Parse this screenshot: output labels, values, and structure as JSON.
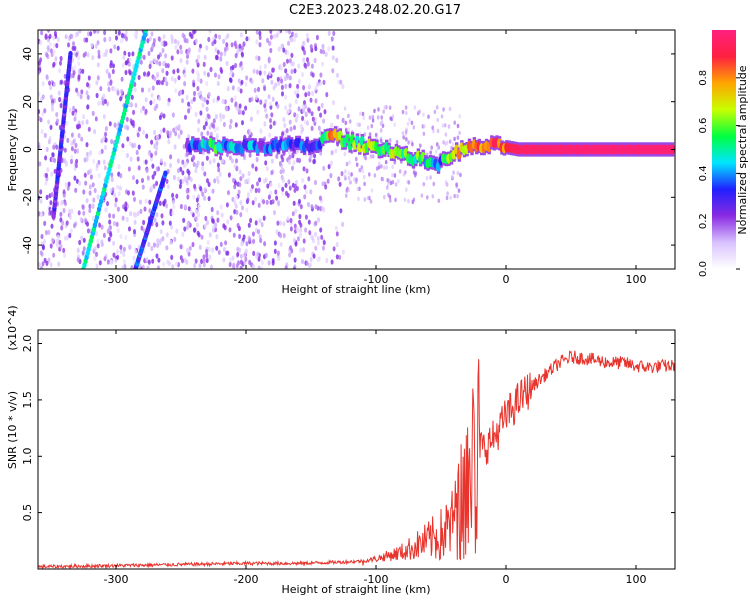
{
  "title": "C2E3.2023.248.02.20.G17",
  "chart_data": [
    {
      "type": "heatmap",
      "name": "spectrogram",
      "xlabel": "Height of straight line (km)",
      "ylabel": "Frequency (Hz)",
      "xlim": [
        -360,
        130
      ],
      "ylim": [
        -50,
        50
      ],
      "x_ticks": [
        -300,
        -200,
        -100,
        0,
        100
      ],
      "y_ticks": [
        -40,
        -20,
        0,
        20,
        40
      ],
      "x_tick_labels": [
        "-300",
        "-200",
        "-100",
        "0",
        "100"
      ],
      "y_tick_labels": [
        "-40",
        "-20",
        "0",
        "20",
        "40"
      ],
      "colorbar": {
        "label": "Normalized spectral amplitude",
        "range": [
          0.0,
          1.0
        ],
        "ticks": [
          0.0,
          0.2,
          0.4,
          0.6,
          0.8
        ],
        "tick_labels": [
          "0.0",
          "0.2",
          "0.4",
          "0.6",
          "0.8"
        ],
        "colors": [
          "#ffffff",
          "#d9c2ff",
          "#8a2be2",
          "#2020ff",
          "#00e5ff",
          "#00ff40",
          "#c8ff00",
          "#ffa500",
          "#ff2040",
          "#ff2080"
        ]
      },
      "main_trace": [
        {
          "x": -245,
          "y": 1.5,
          "a": 0.3
        },
        {
          "x": -225,
          "y": 1.5,
          "a": 0.5
        },
        {
          "x": -205,
          "y": 1.0,
          "a": 0.4
        },
        {
          "x": -185,
          "y": 1.5,
          "a": 0.3
        },
        {
          "x": -165,
          "y": 1.5,
          "a": 0.35
        },
        {
          "x": -145,
          "y": 1.5,
          "a": 0.35
        },
        {
          "x": -135,
          "y": 6.5,
          "a": 0.75
        },
        {
          "x": -120,
          "y": 3.0,
          "a": 0.55
        },
        {
          "x": -105,
          "y": 1.5,
          "a": 0.6
        },
        {
          "x": -90,
          "y": 0.0,
          "a": 0.6
        },
        {
          "x": -75,
          "y": -3.0,
          "a": 0.6
        },
        {
          "x": -60,
          "y": -5.0,
          "a": 0.5
        },
        {
          "x": -50,
          "y": -6.0,
          "a": 0.45
        },
        {
          "x": -40,
          "y": -1.5,
          "a": 0.7
        },
        {
          "x": -30,
          "y": 0.5,
          "a": 0.75
        },
        {
          "x": -15,
          "y": 1.5,
          "a": 0.8
        },
        {
          "x": -5,
          "y": 1.5,
          "a": 0.85
        },
        {
          "x": 10,
          "y": 0.0,
          "a": 0.95
        },
        {
          "x": 40,
          "y": 0.0,
          "a": 0.97
        },
        {
          "x": 80,
          "y": 0.0,
          "a": 0.98
        },
        {
          "x": 130,
          "y": 0.0,
          "a": 0.98
        }
      ],
      "streaks": [
        {
          "from": [
            -325,
            -50
          ],
          "to": [
            -277,
            50
          ],
          "a": 0.4
        },
        {
          "from": [
            -285,
            -50
          ],
          "to": [
            -262,
            -10
          ],
          "a": 0.25
        },
        {
          "from": [
            -348,
            -28
          ],
          "to": [
            -335,
            40
          ],
          "a": 0.2
        }
      ]
    },
    {
      "type": "line",
      "name": "snr",
      "xlabel": "Height of straight line (km)",
      "ylabel": "SNR (10 * v/v)",
      "y_multiplier": "(x10^4)",
      "xlim": [
        -360,
        130
      ],
      "ylim": [
        0,
        2.12
      ],
      "x_ticks": [
        -300,
        -200,
        -100,
        0,
        100
      ],
      "y_ticks": [
        0.5,
        1.0,
        1.5,
        2.0
      ],
      "x_tick_labels": [
        "-300",
        "-200",
        "-100",
        "0",
        "100"
      ],
      "y_tick_labels": [
        "0.5",
        "1.0",
        "1.5",
        "2.0"
      ],
      "color": "#e8342d",
      "series": [
        {
          "name": "SNR",
          "x": [
            -360,
            -300,
            -250,
            -200,
            -160,
            -130,
            -110,
            -100,
            -90,
            -80,
            -70,
            -60,
            -50,
            -40,
            -35,
            -30,
            -25,
            -20,
            -15,
            -10,
            -5,
            0,
            10,
            20,
            30,
            40,
            50,
            60,
            70,
            80,
            90,
            100,
            110,
            120,
            130
          ],
          "y": [
            0.02,
            0.03,
            0.04,
            0.05,
            0.05,
            0.06,
            0.07,
            0.09,
            0.12,
            0.15,
            0.2,
            0.25,
            0.3,
            0.4,
            0.55,
            0.75,
            0.95,
            1.05,
            1.1,
            1.15,
            1.25,
            1.35,
            1.5,
            1.62,
            1.72,
            1.82,
            1.88,
            1.87,
            1.85,
            1.83,
            1.83,
            1.8,
            1.79,
            1.8,
            1.8
          ]
        }
      ]
    }
  ]
}
